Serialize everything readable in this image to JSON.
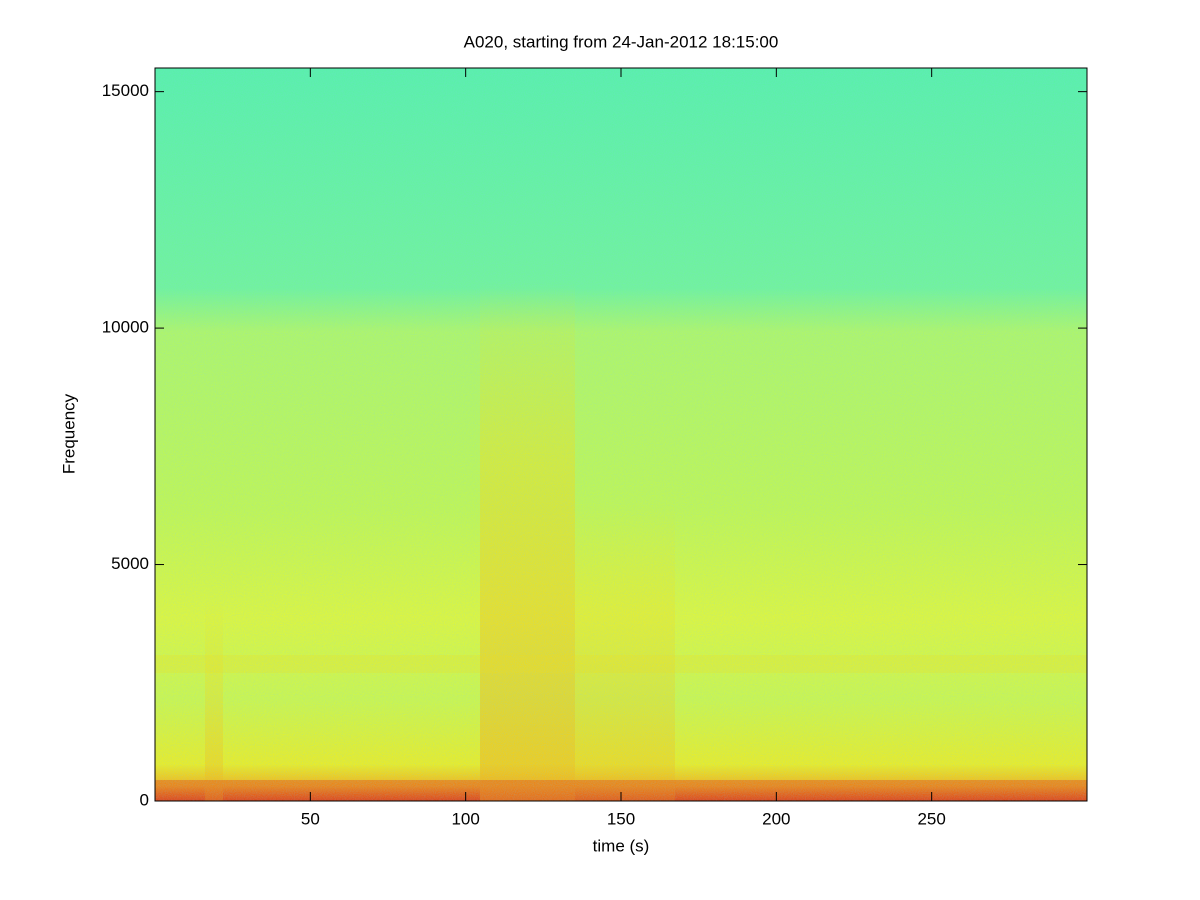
{
  "chart_data": {
    "type": "spectrogram",
    "title": "A020, starting from 24-Jan-2012 18:15:00",
    "x_label": "time (s)",
    "y_label": "Frequency",
    "xlim": [
      0,
      300
    ],
    "xticks": [
      50,
      100,
      150,
      200,
      250
    ],
    "ylim": [
      0,
      15500
    ],
    "yticks": [
      0,
      5000,
      10000,
      15000
    ],
    "colormap": "jet"
  }
}
